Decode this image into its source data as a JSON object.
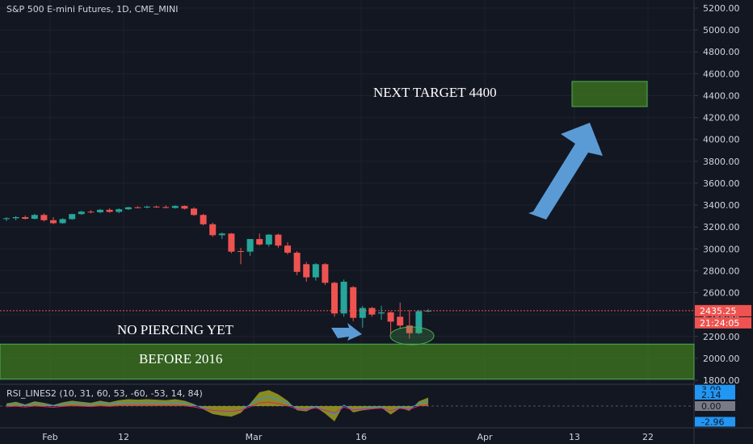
{
  "title": "S&P 500 E-mini Futures, 1D, CME_MINI",
  "indicator": "RSI_LINES2 (10, 31, 60, 53, -60, -53, 14, 84)",
  "y_ticks": [
    "5200.00",
    "5000.00",
    "4800.00",
    "4600.00",
    "4400.00",
    "4200.00",
    "4000.00",
    "3800.00",
    "3600.00",
    "3400.00",
    "3200.00",
    "3000.00",
    "2800.00",
    "2600.00",
    "2400.00",
    "2200.00",
    "2000.00",
    "1800.00"
  ],
  "x_ticks": [
    "Feb",
    "12",
    "Mar",
    "16",
    "Apr",
    "13",
    "22"
  ],
  "price_tag": "2435.25",
  "countdown_tag": "21:24:05",
  "rsi_tags": [
    "3.09",
    "2.14",
    "0.00",
    "-2.96"
  ],
  "annotations": {
    "next_target": "NEXT TARGET 4400",
    "no_piercing": "NO PIERCING YET",
    "before_2016": "BEFORE 2016"
  },
  "colors": {
    "background": "#131722",
    "up": "#26a69a",
    "down": "#ef5350",
    "zone": "#3f7a1f",
    "zone_border": "#4caf50",
    "arrow": "#5b9bd5",
    "rsi_fill": "#a8a820"
  },
  "chart_data": {
    "type": "candlestick",
    "title": "S&P 500 E-mini Futures, 1D, CME_MINI",
    "ylim": [
      1800,
      5200
    ],
    "candles": [
      {
        "o": 3272,
        "h": 3290,
        "l": 3255,
        "c": 3280
      },
      {
        "o": 3280,
        "h": 3300,
        "l": 3262,
        "c": 3290
      },
      {
        "o": 3290,
        "h": 3305,
        "l": 3268,
        "c": 3275
      },
      {
        "o": 3275,
        "h": 3320,
        "l": 3270,
        "c": 3310
      },
      {
        "o": 3310,
        "h": 3325,
        "l": 3250,
        "c": 3262
      },
      {
        "o": 3262,
        "h": 3290,
        "l": 3225,
        "c": 3235
      },
      {
        "o": 3235,
        "h": 3280,
        "l": 3228,
        "c": 3272
      },
      {
        "o": 3272,
        "h": 3320,
        "l": 3265,
        "c": 3318
      },
      {
        "o": 3318,
        "h": 3350,
        "l": 3310,
        "c": 3340
      },
      {
        "o": 3340,
        "h": 3355,
        "l": 3325,
        "c": 3335
      },
      {
        "o": 3335,
        "h": 3365,
        "l": 3325,
        "c": 3357
      },
      {
        "o": 3357,
        "h": 3370,
        "l": 3330,
        "c": 3338
      },
      {
        "o": 3338,
        "h": 3370,
        "l": 3325,
        "c": 3362
      },
      {
        "o": 3362,
        "h": 3385,
        "l": 3355,
        "c": 3380
      },
      {
        "o": 3380,
        "h": 3390,
        "l": 3370,
        "c": 3378
      },
      {
        "o": 3378,
        "h": 3395,
        "l": 3370,
        "c": 3386
      },
      {
        "o": 3386,
        "h": 3395,
        "l": 3375,
        "c": 3382
      },
      {
        "o": 3382,
        "h": 3397,
        "l": 3370,
        "c": 3374
      },
      {
        "o": 3374,
        "h": 3398,
        "l": 3368,
        "c": 3392
      },
      {
        "o": 3392,
        "h": 3397,
        "l": 3360,
        "c": 3368
      },
      {
        "o": 3368,
        "h": 3380,
        "l": 3300,
        "c": 3310
      },
      {
        "o": 3310,
        "h": 3320,
        "l": 3215,
        "c": 3225
      },
      {
        "o": 3225,
        "h": 3240,
        "l": 3110,
        "c": 3125
      },
      {
        "o": 3125,
        "h": 3150,
        "l": 3090,
        "c": 3140
      },
      {
        "o": 3140,
        "h": 3145,
        "l": 2960,
        "c": 2975
      },
      {
        "o": 2980,
        "h": 3010,
        "l": 2860,
        "c": 2975
      },
      {
        "o": 2975,
        "h": 3090,
        "l": 2935,
        "c": 3090
      },
      {
        "o": 3090,
        "h": 3140,
        "l": 3030,
        "c": 3040
      },
      {
        "o": 3040,
        "h": 3135,
        "l": 3020,
        "c": 3130
      },
      {
        "o": 3130,
        "h": 3140,
        "l": 3010,
        "c": 3030
      },
      {
        "o": 3030,
        "h": 3060,
        "l": 2950,
        "c": 2965
      },
      {
        "o": 2965,
        "h": 2980,
        "l": 2760,
        "c": 2790
      },
      {
        "o": 2860,
        "h": 2880,
        "l": 2700,
        "c": 2740
      },
      {
        "o": 2740,
        "h": 2870,
        "l": 2710,
        "c": 2860
      },
      {
        "o": 2860,
        "h": 2870,
        "l": 2670,
        "c": 2690
      },
      {
        "o": 2690,
        "h": 2700,
        "l": 2380,
        "c": 2410
      },
      {
        "o": 2410,
        "h": 2720,
        "l": 2380,
        "c": 2700
      },
      {
        "o": 2650,
        "h": 2660,
        "l": 2340,
        "c": 2370
      },
      {
        "o": 2370,
        "h": 2480,
        "l": 2280,
        "c": 2460
      },
      {
        "o": 2460,
        "h": 2470,
        "l": 2380,
        "c": 2400
      },
      {
        "o": 2410,
        "h": 2480,
        "l": 2350,
        "c": 2420
      },
      {
        "o": 2420,
        "h": 2430,
        "l": 2225,
        "c": 2335
      },
      {
        "o": 2380,
        "h": 2510,
        "l": 2270,
        "c": 2300
      },
      {
        "o": 2300,
        "h": 2440,
        "l": 2180,
        "c": 2230
      },
      {
        "o": 2230,
        "h": 2440,
        "l": 2220,
        "c": 2430
      },
      {
        "o": 2430,
        "h": 2450,
        "l": 2420,
        "c": 2435
      }
    ],
    "rsi": [
      0.5,
      0.8,
      0.3,
      0.9,
      0.6,
      0.2,
      0.7,
      1.0,
      0.8,
      0.6,
      1.0,
      0.7,
      1.1,
      1.3,
      1.2,
      1.3,
      1.2,
      1.1,
      1.3,
      1.0,
      0.4,
      -0.6,
      -1.5,
      -1.8,
      -2.0,
      -1.3,
      0.5,
      2.6,
      3.0,
      2.2,
      1.0,
      -0.8,
      -1.0,
      -0.2,
      -1.4,
      -2.9,
      0.3,
      -1.2,
      -0.8,
      -0.6,
      -0.3,
      -1.6,
      -0.4,
      -0.9,
      0.9,
      1.6
    ],
    "rsi_ylim": [
      -3.5,
      3.5
    ],
    "zones": [
      {
        "label": "NEXT TARGET 4400",
        "y": [
          4300,
          4530
        ]
      },
      {
        "label": "BEFORE 2016",
        "y": [
          1810,
          2130
        ]
      }
    ],
    "last_price": 2435.25
  }
}
